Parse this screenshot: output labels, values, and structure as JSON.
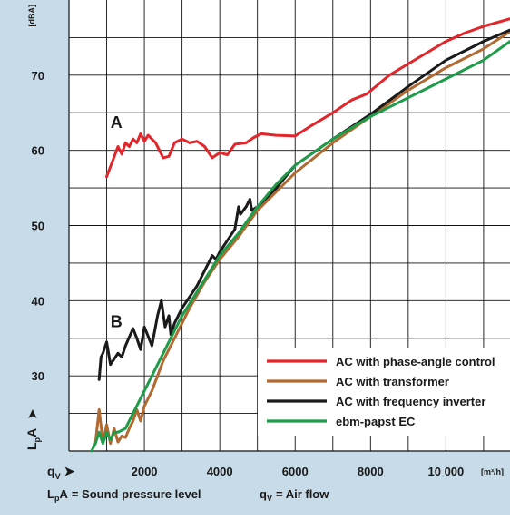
{
  "chart_data": {
    "type": "line",
    "title": "",
    "x_axis": {
      "symbol": "q",
      "subscript": "V",
      "arrow": "➤",
      "unit": "[m³/h]",
      "min": 0,
      "max": 11700,
      "grid_step": 1000,
      "ticks": [
        {
          "value": 2000,
          "label": "2000"
        },
        {
          "value": 4000,
          "label": "4000"
        },
        {
          "value": 6000,
          "label": "6000"
        },
        {
          "value": 8000,
          "label": "8000"
        },
        {
          "value": 10000,
          "label": "10 000"
        }
      ]
    },
    "y_axis": {
      "symbol": "L",
      "subscript": "p",
      "suffix": "A",
      "arrow": "➤",
      "unit": "[dBA]",
      "min": 20,
      "max": 80,
      "grid_step": 5,
      "ticks": [
        {
          "value": 30,
          "label": "30"
        },
        {
          "value": 40,
          "label": "40"
        },
        {
          "value": 50,
          "label": "50"
        },
        {
          "value": 60,
          "label": "60"
        },
        {
          "value": 70,
          "label": "70"
        }
      ]
    },
    "grid": true,
    "legend_position": "bottom-right",
    "series": [
      {
        "name": "AC with phase-angle control",
        "color": "#e3262b",
        "points": [
          [
            1000,
            56.5
          ],
          [
            1150,
            58.5
          ],
          [
            1300,
            60.5
          ],
          [
            1400,
            59.5
          ],
          [
            1500,
            61
          ],
          [
            1600,
            60.5
          ],
          [
            1700,
            61.5
          ],
          [
            1800,
            61
          ],
          [
            1900,
            62.2
          ],
          [
            2000,
            61.2
          ],
          [
            2100,
            62
          ],
          [
            2300,
            61
          ],
          [
            2500,
            59
          ],
          [
            2650,
            59.2
          ],
          [
            2800,
            61
          ],
          [
            3000,
            61.5
          ],
          [
            3200,
            61
          ],
          [
            3400,
            61.2
          ],
          [
            3600,
            60.5
          ],
          [
            3800,
            59
          ],
          [
            4000,
            59.7
          ],
          [
            4200,
            59.4
          ],
          [
            4400,
            60.8
          ],
          [
            4700,
            61
          ],
          [
            4900,
            61.7
          ],
          [
            5100,
            62.2
          ],
          [
            5500,
            62
          ],
          [
            6000,
            61.9
          ],
          [
            6400,
            63.2
          ],
          [
            7000,
            65
          ],
          [
            7500,
            66.7
          ],
          [
            7900,
            67.5
          ],
          [
            8500,
            70
          ],
          [
            9000,
            71.5
          ],
          [
            9500,
            73
          ],
          [
            10000,
            74.5
          ],
          [
            10500,
            75.6
          ],
          [
            11000,
            76.5
          ],
          [
            11700,
            77.5
          ]
        ]
      },
      {
        "name": "AC with transformer",
        "color": "#b06a32",
        "points": [
          [
            700,
            21
          ],
          [
            800,
            25.5
          ],
          [
            900,
            21.2
          ],
          [
            1000,
            23.5
          ],
          [
            1100,
            21
          ],
          [
            1200,
            23
          ],
          [
            1300,
            21.2
          ],
          [
            1400,
            22
          ],
          [
            1500,
            21.8
          ],
          [
            1600,
            23
          ],
          [
            1700,
            24
          ],
          [
            1800,
            25.5
          ],
          [
            1900,
            24
          ],
          [
            2000,
            26
          ],
          [
            2200,
            28
          ],
          [
            2500,
            32
          ],
          [
            2800,
            35
          ],
          [
            3200,
            39
          ],
          [
            3600,
            42.5
          ],
          [
            4000,
            45.5
          ],
          [
            4500,
            48.5
          ],
          [
            5000,
            52
          ],
          [
            5500,
            54.5
          ],
          [
            6000,
            57
          ],
          [
            7000,
            61
          ],
          [
            8000,
            64.5
          ],
          [
            9000,
            68
          ],
          [
            10000,
            71
          ],
          [
            11000,
            73.5
          ],
          [
            11700,
            75.8
          ]
        ]
      },
      {
        "name": "AC with frequency inverter",
        "color": "#1a1a1a",
        "points": [
          [
            800,
            29.5
          ],
          [
            850,
            32.5
          ],
          [
            900,
            33
          ],
          [
            1000,
            34.5
          ],
          [
            1100,
            31.5
          ],
          [
            1300,
            33
          ],
          [
            1400,
            32.5
          ],
          [
            1500,
            34
          ],
          [
            1700,
            36.3
          ],
          [
            1800,
            35
          ],
          [
            1900,
            33.5
          ],
          [
            2000,
            36.5
          ],
          [
            2200,
            34
          ],
          [
            2350,
            38
          ],
          [
            2450,
            40
          ],
          [
            2550,
            36.5
          ],
          [
            2650,
            38
          ],
          [
            2700,
            35.5
          ],
          [
            2800,
            37
          ],
          [
            3000,
            39
          ],
          [
            3400,
            42
          ],
          [
            3600,
            44
          ],
          [
            3700,
            45
          ],
          [
            3800,
            46
          ],
          [
            3900,
            45.5
          ],
          [
            4000,
            46.5
          ],
          [
            4200,
            48
          ],
          [
            4400,
            49.5
          ],
          [
            4500,
            52.5
          ],
          [
            4550,
            51.5
          ],
          [
            4700,
            52.5
          ],
          [
            4800,
            53.5
          ],
          [
            4850,
            52
          ],
          [
            5000,
            52.5
          ],
          [
            5500,
            55
          ],
          [
            6000,
            58
          ],
          [
            7000,
            61.5
          ],
          [
            8000,
            64.8
          ],
          [
            9000,
            68.5
          ],
          [
            10000,
            72
          ],
          [
            11000,
            74.5
          ],
          [
            11700,
            76
          ]
        ]
      },
      {
        "name": "ebm-papst EC",
        "color": "#1f9c4a",
        "points": [
          [
            600,
            20
          ],
          [
            700,
            21
          ],
          [
            800,
            22.5
          ],
          [
            900,
            21
          ],
          [
            1000,
            22.5
          ],
          [
            1100,
            21.5
          ],
          [
            1200,
            22.5
          ],
          [
            1300,
            22.5
          ],
          [
            1500,
            23
          ],
          [
            2000,
            28
          ],
          [
            2500,
            33
          ],
          [
            3000,
            38
          ],
          [
            3500,
            42
          ],
          [
            4000,
            46
          ],
          [
            4500,
            49
          ],
          [
            5000,
            52.5
          ],
          [
            5500,
            55.5
          ],
          [
            6000,
            58
          ],
          [
            7000,
            61.5
          ],
          [
            8000,
            64.5
          ],
          [
            9000,
            67
          ],
          [
            10000,
            69.5
          ],
          [
            11000,
            72
          ],
          [
            11700,
            74.5
          ]
        ]
      }
    ],
    "annotations": [
      {
        "text": "A",
        "x": 1100,
        "y": 63,
        "color": "#1a1a1a"
      },
      {
        "text": "B",
        "x": 1100,
        "y": 36.5,
        "color": "#1a1a1a"
      }
    ],
    "caption": {
      "lpa_symbol": "L",
      "lpa_subscript": "p",
      "lpa_suffix": "A",
      "lpa_text": "= Sound pressure level",
      "qv_symbol": "q",
      "qv_subscript": "V",
      "qv_text": "= Air flow"
    }
  }
}
